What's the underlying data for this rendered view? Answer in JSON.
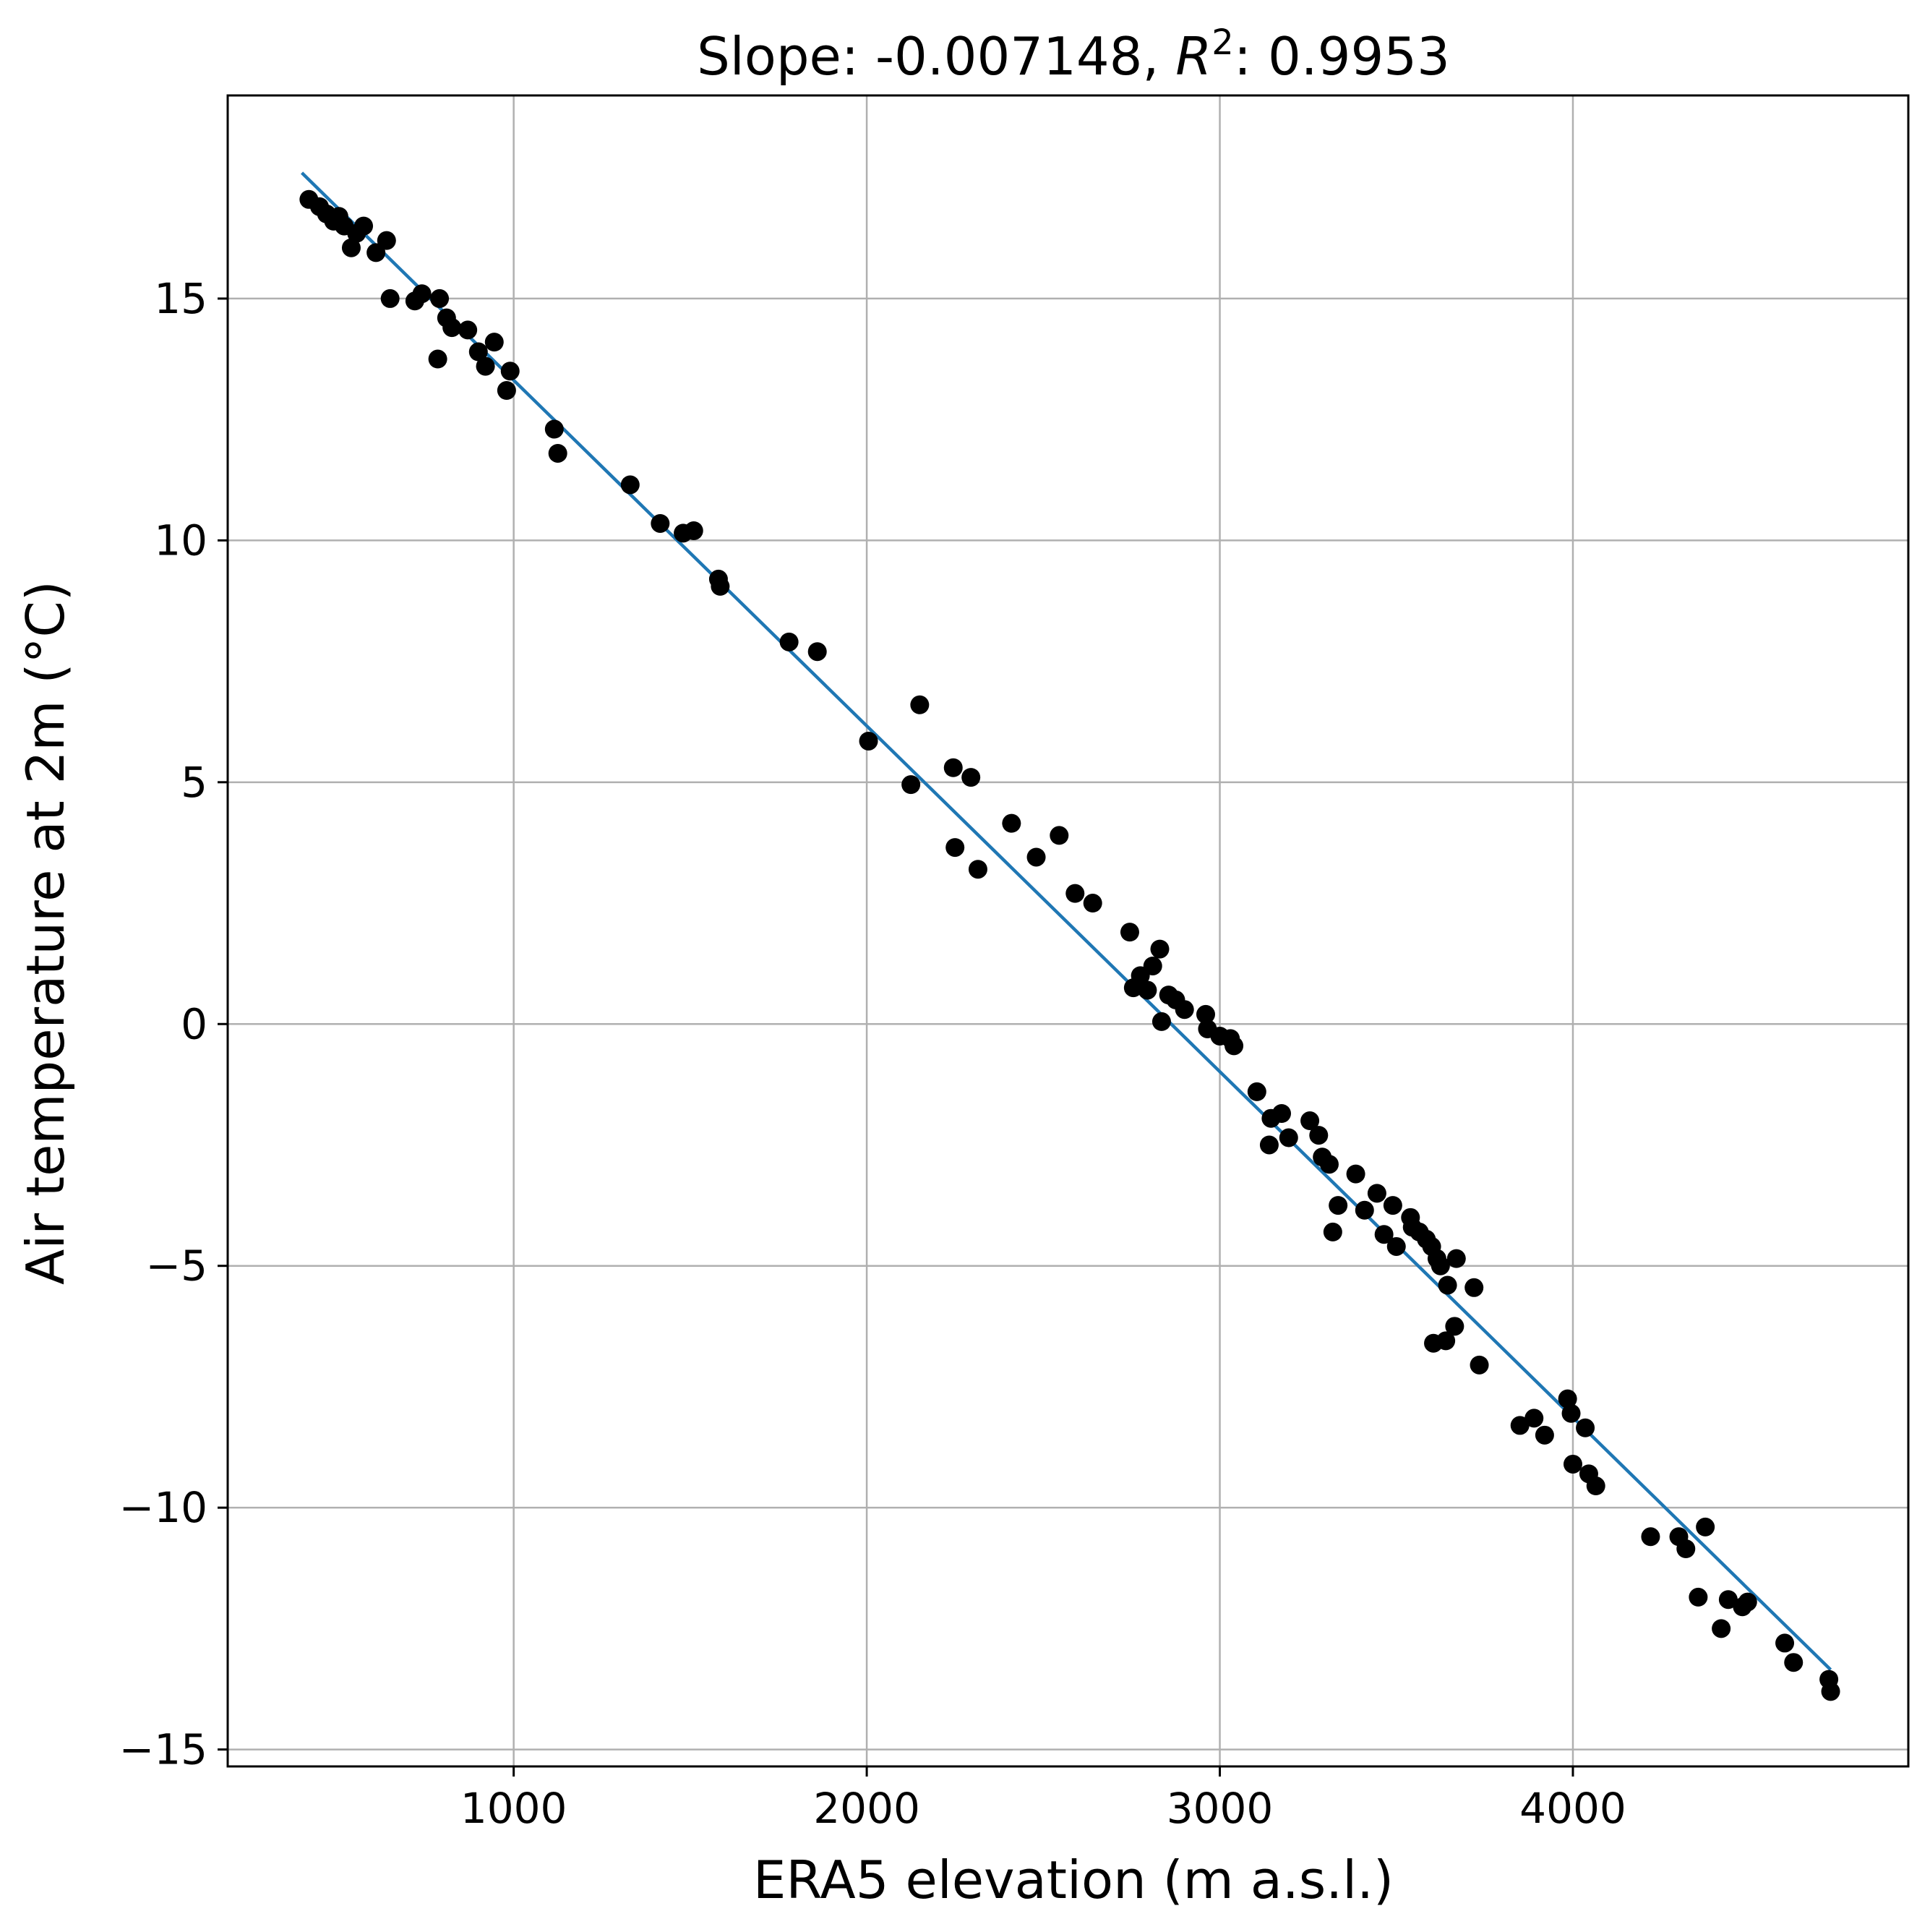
{
  "chart_data": {
    "type": "scatter",
    "title_prefix": "Slope: -0.007148, ",
    "title_r": "R",
    "title_sup": "2",
    "title_suffix": ": 0.9953",
    "xlabel": "ERA5 elevation (m a.s.l.)",
    "ylabel": "Air temperature at 2m (°C)",
    "xlim": [
      190,
      4950
    ],
    "ylim": [
      -15.35,
      19.2
    ],
    "xticks": [
      1000,
      2000,
      3000,
      4000
    ],
    "xtick_labels": [
      "1000",
      "2000",
      "3000",
      "4000"
    ],
    "yticks": [
      15,
      10,
      5,
      0,
      -5,
      -10,
      -15
    ],
    "ytick_labels": [
      "15",
      "10",
      "5",
      "0",
      "−5",
      "−10",
      "−15"
    ],
    "grid": true,
    "colors": {
      "points": "#000000",
      "fit_line": "#1f77b4",
      "grid": "#b0b0b0"
    },
    "fit_line": {
      "x": [
        400,
        4730
      ],
      "y": [
        17.6,
        -13.35
      ]
    },
    "points": [
      [
        420,
        17.05
      ],
      [
        450,
        16.9
      ],
      [
        470,
        16.75
      ],
      [
        490,
        16.6
      ],
      [
        505,
        16.7
      ],
      [
        520,
        16.5
      ],
      [
        540,
        16.05
      ],
      [
        555,
        16.35
      ],
      [
        575,
        16.5
      ],
      [
        610,
        15.95
      ],
      [
        640,
        16.2
      ],
      [
        650,
        15.0
      ],
      [
        720,
        14.95
      ],
      [
        740,
        15.1
      ],
      [
        790,
        15.0
      ],
      [
        785,
        13.75
      ],
      [
        810,
        14.6
      ],
      [
        825,
        14.4
      ],
      [
        870,
        14.35
      ],
      [
        900,
        13.9
      ],
      [
        920,
        13.6
      ],
      [
        945,
        14.1
      ],
      [
        980,
        13.1
      ],
      [
        990,
        13.5
      ],
      [
        1115,
        12.3
      ],
      [
        1125,
        11.8
      ],
      [
        1330,
        11.15
      ],
      [
        1415,
        10.35
      ],
      [
        1480,
        10.15
      ],
      [
        1510,
        10.2
      ],
      [
        1580,
        9.2
      ],
      [
        1585,
        9.05
      ],
      [
        1780,
        7.9
      ],
      [
        1860,
        7.7
      ],
      [
        2005,
        5.85
      ],
      [
        2125,
        4.95
      ],
      [
        2150,
        6.6
      ],
      [
        2245,
        5.3
      ],
      [
        2250,
        3.65
      ],
      [
        2295,
        5.1
      ],
      [
        2315,
        3.2
      ],
      [
        2410,
        4.15
      ],
      [
        2480,
        3.45
      ],
      [
        2545,
        3.9
      ],
      [
        2590,
        2.7
      ],
      [
        2640,
        2.5
      ],
      [
        2745,
        1.9
      ],
      [
        2755,
        0.75
      ],
      [
        2775,
        1.0
      ],
      [
        2795,
        0.7
      ],
      [
        2810,
        1.2
      ],
      [
        2830,
        1.55
      ],
      [
        2835,
        0.05
      ],
      [
        2855,
        0.6
      ],
      [
        2875,
        0.5
      ],
      [
        2900,
        0.3
      ],
      [
        2960,
        0.2
      ],
      [
        2965,
        -0.1
      ],
      [
        3000,
        -0.25
      ],
      [
        3030,
        -0.3
      ],
      [
        3040,
        -0.45
      ],
      [
        3105,
        -1.4
      ],
      [
        3140,
        -2.5
      ],
      [
        3145,
        -1.95
      ],
      [
        3175,
        -1.85
      ],
      [
        3195,
        -2.35
      ],
      [
        3255,
        -2.0
      ],
      [
        3280,
        -2.3
      ],
      [
        3290,
        -2.75
      ],
      [
        3310,
        -2.9
      ],
      [
        3320,
        -4.3
      ],
      [
        3335,
        -3.75
      ],
      [
        3385,
        -3.1
      ],
      [
        3410,
        -3.85
      ],
      [
        3445,
        -3.5
      ],
      [
        3465,
        -4.35
      ],
      [
        3490,
        -3.75
      ],
      [
        3500,
        -4.6
      ],
      [
        3540,
        -4.0
      ],
      [
        3545,
        -4.2
      ],
      [
        3565,
        -4.3
      ],
      [
        3585,
        -4.45
      ],
      [
        3600,
        -4.6
      ],
      [
        3605,
        -6.6
      ],
      [
        3615,
        -4.85
      ],
      [
        3625,
        -5.0
      ],
      [
        3640,
        -6.55
      ],
      [
        3645,
        -5.4
      ],
      [
        3665,
        -6.25
      ],
      [
        3670,
        -4.85
      ],
      [
        3720,
        -5.45
      ],
      [
        3735,
        -7.05
      ],
      [
        3850,
        -8.3
      ],
      [
        3890,
        -8.15
      ],
      [
        3920,
        -8.5
      ],
      [
        3985,
        -7.75
      ],
      [
        3995,
        -8.05
      ],
      [
        4000,
        -9.1
      ],
      [
        4035,
        -8.35
      ],
      [
        4045,
        -9.3
      ],
      [
        4065,
        -9.55
      ],
      [
        4220,
        -10.6
      ],
      [
        4300,
        -10.6
      ],
      [
        4320,
        -10.85
      ],
      [
        4355,
        -11.85
      ],
      [
        4375,
        -10.4
      ],
      [
        4420,
        -12.5
      ],
      [
        4440,
        -11.9
      ],
      [
        4480,
        -12.05
      ],
      [
        4495,
        -11.95
      ],
      [
        4600,
        -12.8
      ],
      [
        4625,
        -13.2
      ],
      [
        4725,
        -13.55
      ],
      [
        4730,
        -13.8
      ]
    ]
  }
}
